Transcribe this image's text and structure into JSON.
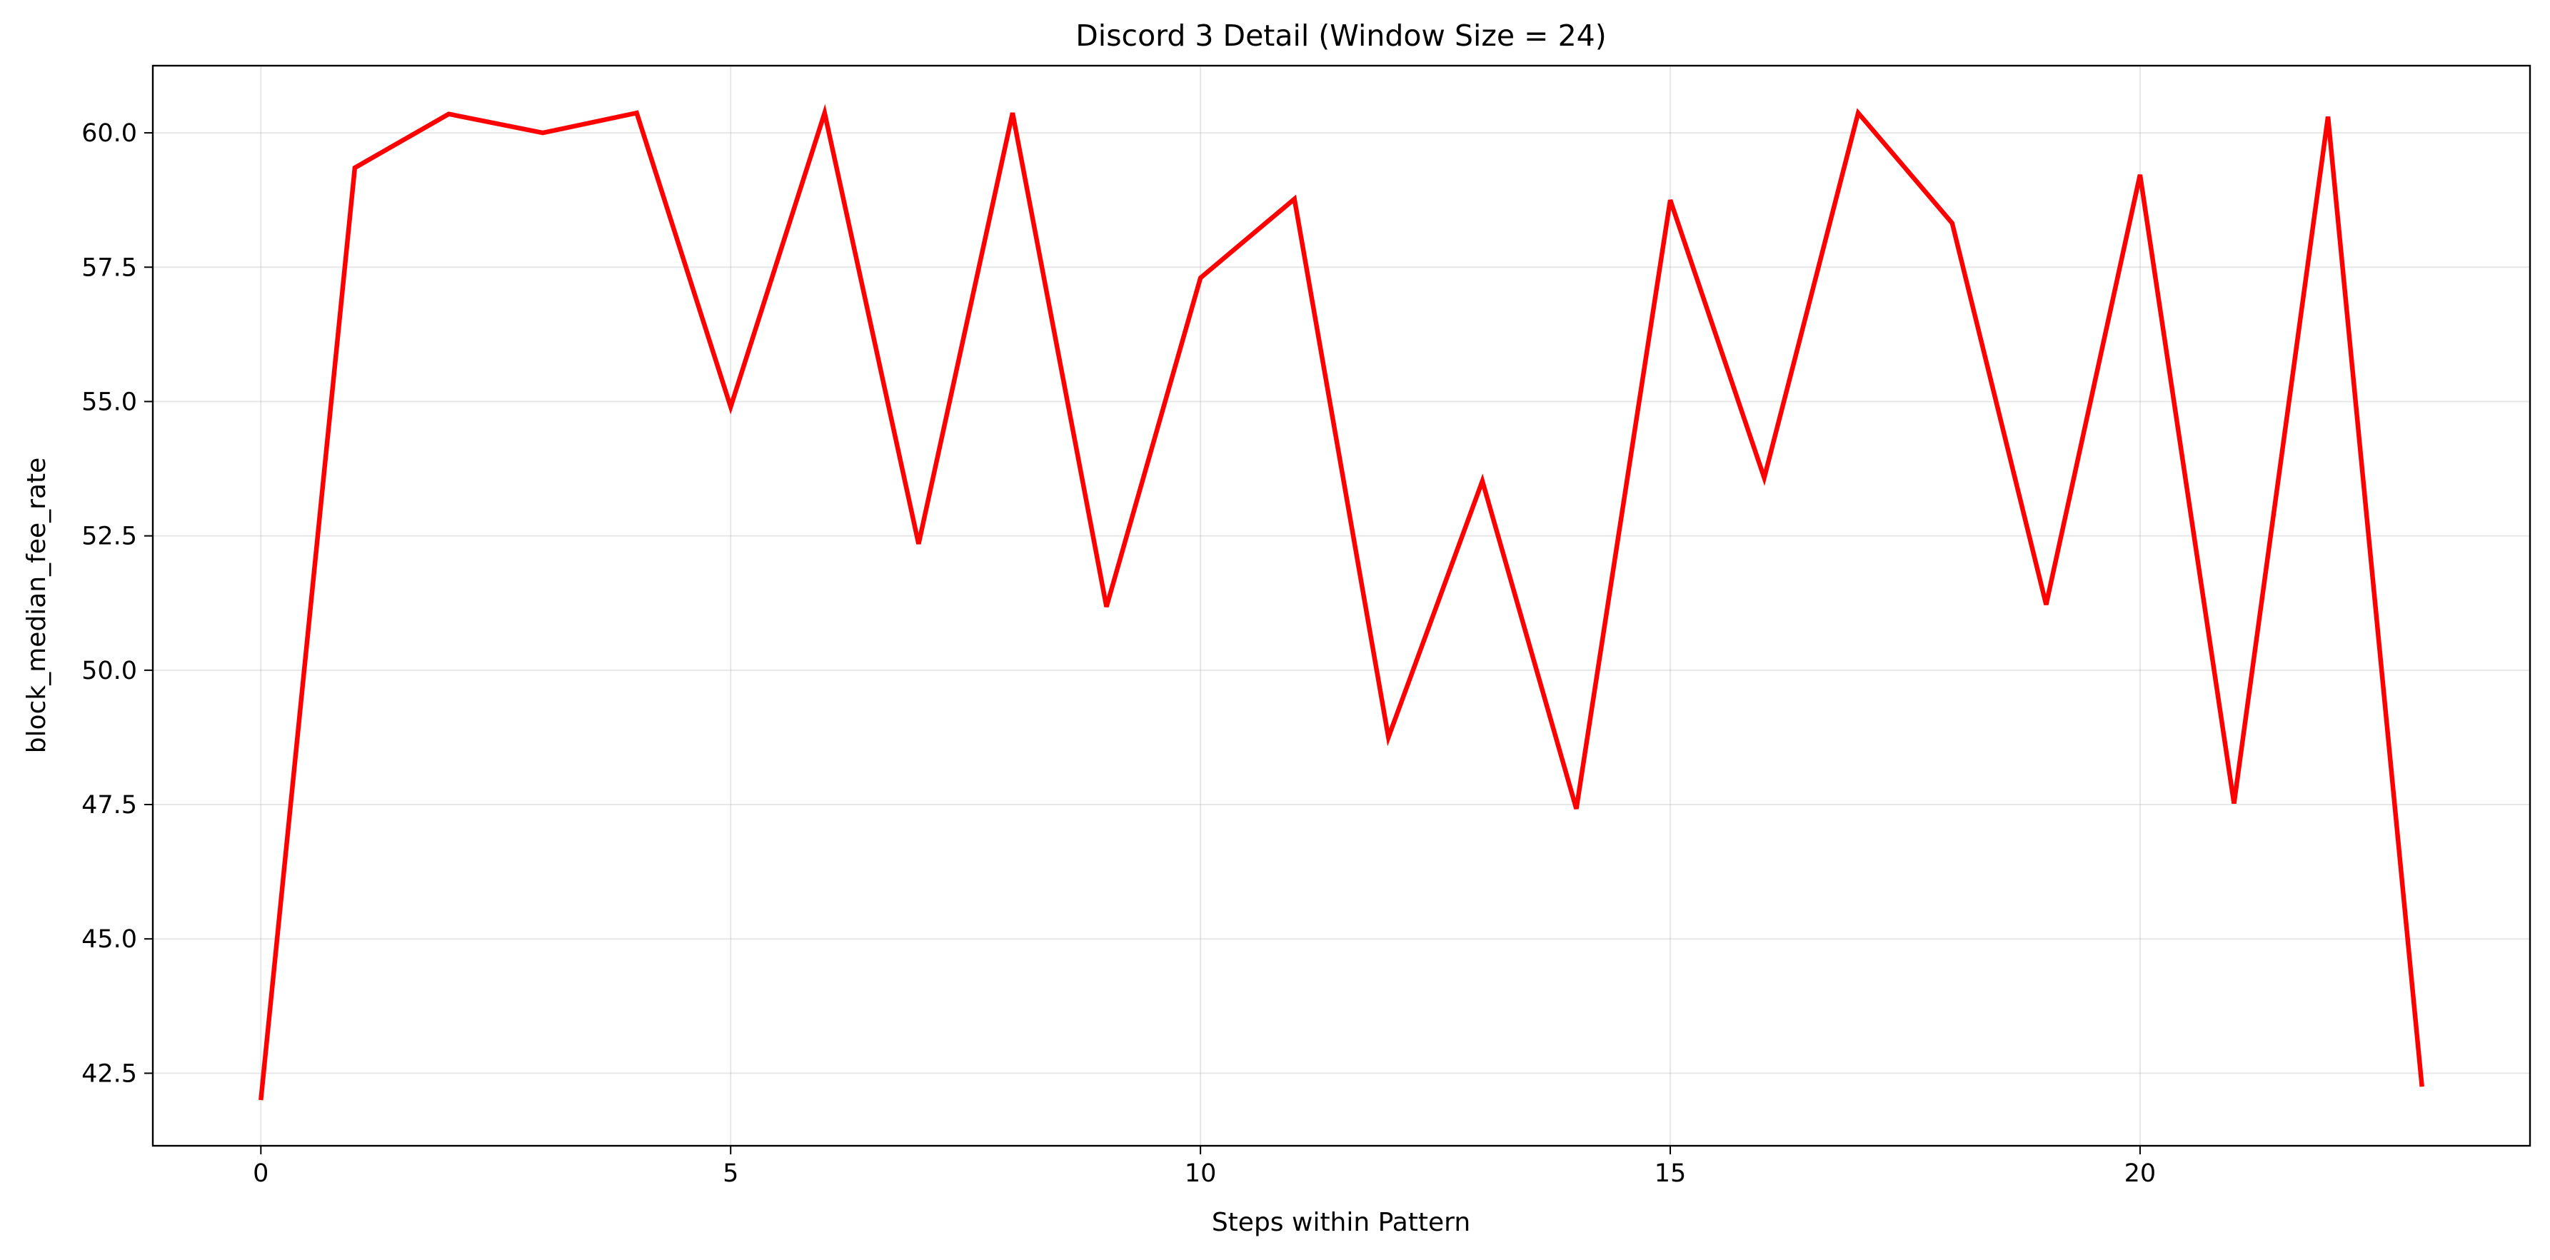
{
  "chart_data": {
    "type": "line",
    "title": "Discord 3 Detail (Window Size = 24)",
    "xlabel": "Steps within Pattern",
    "ylabel": "block_median_fee_rate",
    "xlim": [
      -1.15,
      24.15
    ],
    "ylim": [
      41.15,
      61.25
    ],
    "x_ticks": [
      0,
      5,
      10,
      15,
      20
    ],
    "x_tick_labels": [
      "0",
      "5",
      "10",
      "15",
      "20"
    ],
    "y_ticks": [
      42.5,
      45.0,
      47.5,
      50.0,
      52.5,
      55.0,
      57.5,
      60.0
    ],
    "y_tick_labels": [
      "42.5",
      "45.0",
      "47.5",
      "50.0",
      "52.5",
      "55.0",
      "57.5",
      "60.0"
    ],
    "grid": true,
    "legend": "none",
    "series": [
      {
        "color": "#ff0000",
        "x": [
          0,
          1,
          2,
          3,
          4,
          5,
          6,
          7,
          8,
          9,
          10,
          11,
          12,
          13,
          14,
          15,
          16,
          17,
          18,
          19,
          20,
          21,
          22,
          23
        ],
        "values": [
          42.0,
          59.35,
          60.35,
          60.0,
          60.37,
          54.9,
          60.37,
          52.35,
          60.37,
          51.18,
          57.3,
          58.77,
          48.75,
          53.52,
          47.42,
          58.75,
          53.58,
          60.37,
          58.32,
          51.22,
          59.22,
          47.52,
          60.3,
          42.25
        ]
      }
    ]
  }
}
